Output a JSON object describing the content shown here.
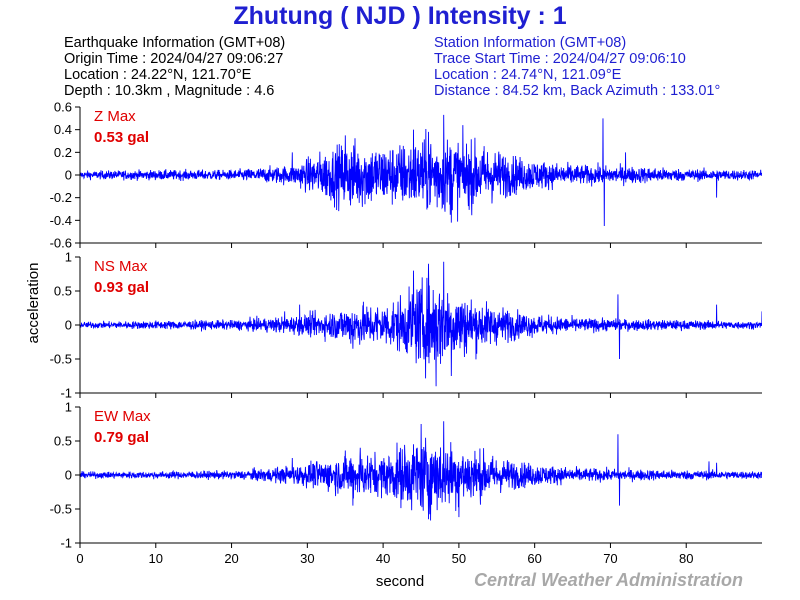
{
  "title": "Zhutung ( NJD ) Intensity : 1",
  "earthquake": {
    "header": "Earthquake Information (GMT+08)",
    "origin_time": "Origin Time : 2024/04/27 09:06:27",
    "location": "Location : 24.22°N, 121.70°E",
    "depth_magnitude": "Depth : 10.3km , Magnitude : 4.6"
  },
  "station": {
    "header": "Station Information (GMT+08)",
    "trace_start": "Trace Start Time : 2024/04/27 09:06:10",
    "location": "Location : 24.74°N, 121.09°E",
    "distance": "Distance : 84.52 km, Back Azimuth : 133.01°"
  },
  "watermark": "Central Weather Administration",
  "colors": {
    "trace": "#0000ff",
    "title": "#1f1fd1",
    "max_label": "#e00000",
    "watermark": "#a8a8a8"
  },
  "chart_data": {
    "type": "line",
    "xlabel": "second",
    "ylabel": "acceleration",
    "xlim": [
      0,
      90
    ],
    "xticks": [
      0,
      10,
      20,
      30,
      40,
      50,
      60,
      70,
      80
    ],
    "series": [
      {
        "name": "Z Max",
        "max_value": "0.53 gal",
        "ylim": [
          -0.6,
          0.6
        ],
        "yticks": [
          0.6,
          0.4,
          0.2,
          0,
          -0.2,
          -0.4,
          -0.6
        ],
        "envelope": [
          [
            0,
            0.04
          ],
          [
            10,
            0.05
          ],
          [
            20,
            0.05
          ],
          [
            28,
            0.1
          ],
          [
            34,
            0.3
          ],
          [
            36,
            0.35
          ],
          [
            40,
            0.3
          ],
          [
            44,
            0.34
          ],
          [
            47,
            0.4
          ],
          [
            50,
            0.37
          ],
          [
            54,
            0.28
          ],
          [
            58,
            0.18
          ],
          [
            62,
            0.13
          ],
          [
            66,
            0.1
          ],
          [
            70,
            0.09
          ],
          [
            75,
            0.08
          ],
          [
            80,
            0.06
          ],
          [
            90,
            0.05
          ]
        ],
        "spikes": [
          [
            28,
            0.2
          ],
          [
            35,
            0.35
          ],
          [
            44,
            0.4
          ],
          [
            48,
            0.53
          ],
          [
            49,
            -0.42
          ],
          [
            46,
            0.38
          ],
          [
            69,
            0.5
          ],
          [
            69.2,
            -0.45
          ],
          [
            72,
            0.2
          ],
          [
            84,
            -0.2
          ]
        ]
      },
      {
        "name": "NS Max",
        "max_value": "0.93 gal",
        "ylim": [
          -1,
          1
        ],
        "yticks": [
          1,
          0.5,
          0,
          -0.5,
          -1
        ],
        "envelope": [
          [
            0,
            0.05
          ],
          [
            10,
            0.07
          ],
          [
            20,
            0.08
          ],
          [
            28,
            0.15
          ],
          [
            34,
            0.25
          ],
          [
            36,
            0.35
          ],
          [
            40,
            0.35
          ],
          [
            43,
            0.5
          ],
          [
            45,
            0.72
          ],
          [
            47,
            0.75
          ],
          [
            50,
            0.55
          ],
          [
            54,
            0.35
          ],
          [
            58,
            0.22
          ],
          [
            62,
            0.15
          ],
          [
            66,
            0.12
          ],
          [
            70,
            0.1
          ],
          [
            75,
            0.09
          ],
          [
            80,
            0.08
          ],
          [
            90,
            0.06
          ]
        ],
        "spikes": [
          [
            27,
            0.2
          ],
          [
            29,
            0.3
          ],
          [
            36,
            -0.35
          ],
          [
            44,
            0.8
          ],
          [
            46,
            0.9
          ],
          [
            47,
            -0.9
          ],
          [
            48,
            0.93
          ],
          [
            49,
            -0.75
          ],
          [
            71,
            0.45
          ],
          [
            71.2,
            -0.5
          ],
          [
            84,
            0.3
          ],
          [
            90,
            0.2
          ]
        ]
      },
      {
        "name": "EW Max",
        "max_value": "0.79 gal",
        "ylim": [
          -1,
          1
        ],
        "yticks": [
          1,
          0.5,
          0,
          -0.5,
          -1
        ],
        "envelope": [
          [
            0,
            0.05
          ],
          [
            10,
            0.06
          ],
          [
            20,
            0.07
          ],
          [
            28,
            0.15
          ],
          [
            34,
            0.3
          ],
          [
            36,
            0.38
          ],
          [
            40,
            0.35
          ],
          [
            43,
            0.55
          ],
          [
            46,
            0.65
          ],
          [
            49,
            0.55
          ],
          [
            52,
            0.45
          ],
          [
            55,
            0.3
          ],
          [
            58,
            0.22
          ],
          [
            62,
            0.16
          ],
          [
            66,
            0.12
          ],
          [
            70,
            0.1
          ],
          [
            75,
            0.09
          ],
          [
            80,
            0.08
          ],
          [
            90,
            0.06
          ]
        ],
        "spikes": [
          [
            28,
            0.25
          ],
          [
            36,
            -0.45
          ],
          [
            37,
            0.4
          ],
          [
            45,
            0.75
          ],
          [
            46,
            -0.65
          ],
          [
            48,
            0.79
          ],
          [
            50,
            -0.62
          ],
          [
            71,
            0.6
          ],
          [
            71.2,
            -0.45
          ],
          [
            83,
            0.2
          ],
          [
            84,
            0.18
          ]
        ]
      }
    ]
  }
}
